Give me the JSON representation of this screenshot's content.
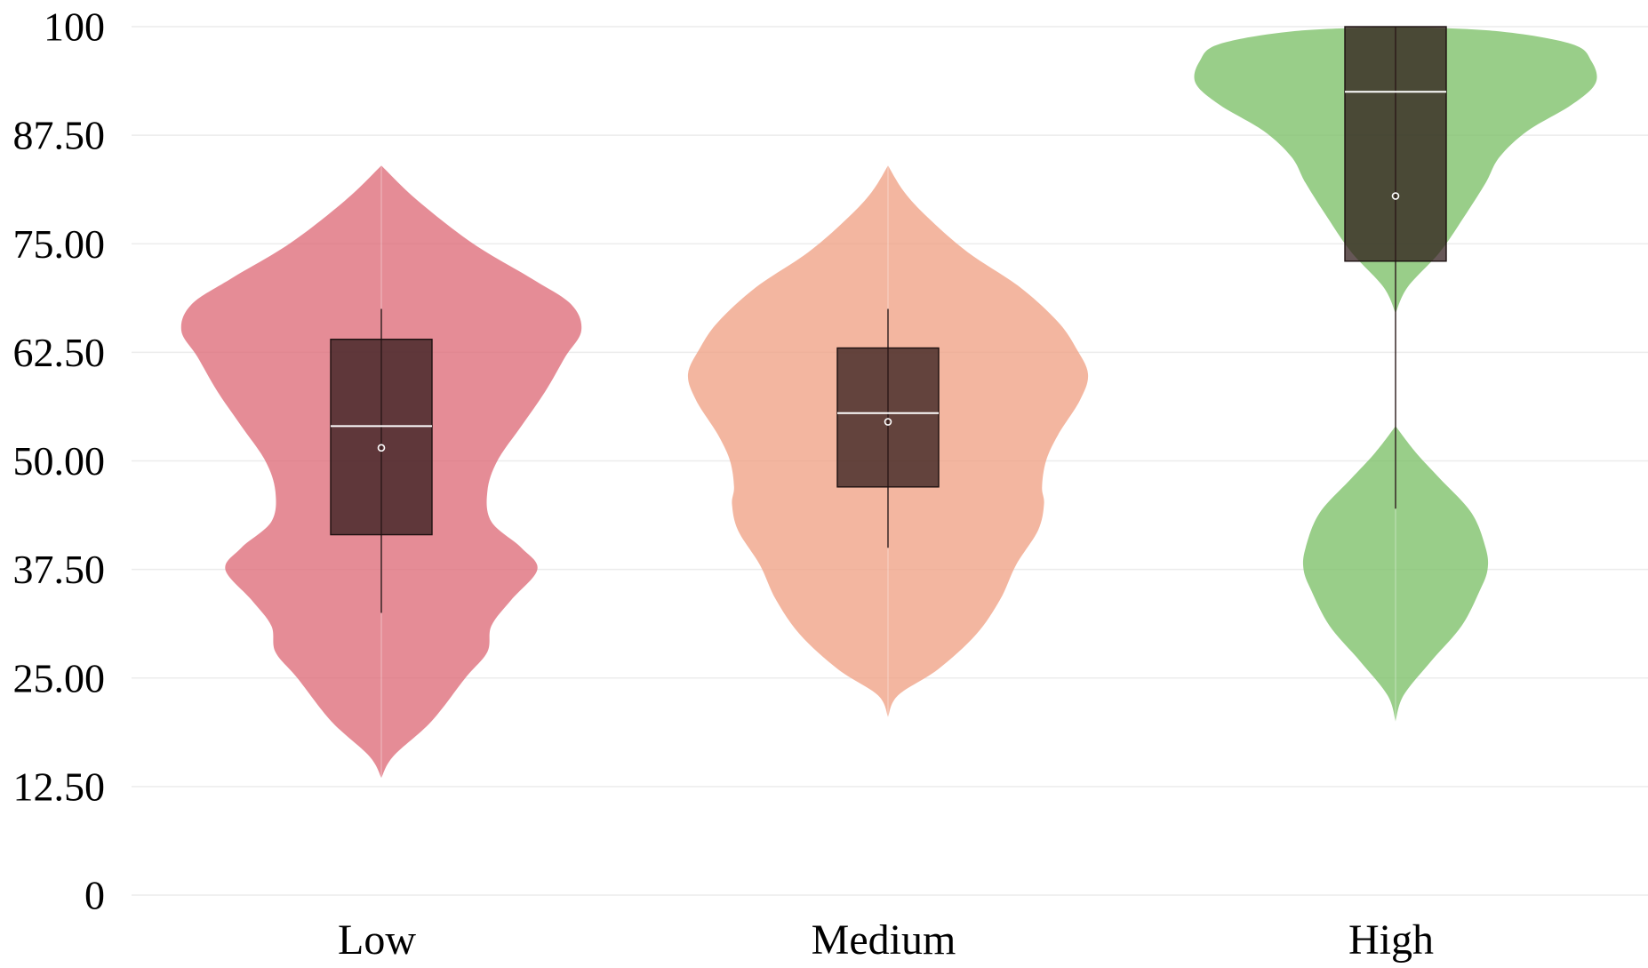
{
  "chart_data": {
    "type": "violin",
    "title": "",
    "xlabel": "",
    "ylabel": "",
    "ylim": [
      0,
      100
    ],
    "yticks": [
      0,
      12.5,
      25,
      37.5,
      50,
      62.5,
      75,
      87.5,
      100
    ],
    "ytick_labels": [
      "0",
      "12.50",
      "25.00",
      "37.50",
      "50.00",
      "62.50",
      "75.00",
      "87.50",
      "100"
    ],
    "grid": true,
    "legend": "none",
    "categories": [
      "Low",
      "Medium",
      "High"
    ],
    "series": [
      {
        "category": "Low",
        "color": "#de6b78",
        "box": {
          "whisker_low": 32.5,
          "q1": 41.5,
          "median": 54,
          "q3": 64,
          "whisker_high": 67.5,
          "mean": 51.5
        },
        "violin_range": [
          13.5,
          84
        ],
        "density": [
          [
            13.5,
            0.0
          ],
          [
            16,
            0.06
          ],
          [
            20,
            0.25
          ],
          [
            25,
            0.42
          ],
          [
            28,
            0.53
          ],
          [
            31,
            0.55
          ],
          [
            34,
            0.65
          ],
          [
            37.5,
            0.78
          ],
          [
            40,
            0.7
          ],
          [
            43,
            0.55
          ],
          [
            46.5,
            0.53
          ],
          [
            50,
            0.58
          ],
          [
            54,
            0.7
          ],
          [
            58,
            0.82
          ],
          [
            62,
            0.92
          ],
          [
            65,
            1.0
          ],
          [
            68,
            0.95
          ],
          [
            71,
            0.75
          ],
          [
            75,
            0.46
          ],
          [
            80,
            0.18
          ],
          [
            84,
            0.0
          ]
        ]
      },
      {
        "category": "Medium",
        "color": "#f0a185",
        "box": {
          "whisker_low": 40,
          "q1": 47,
          "median": 55.5,
          "q3": 63,
          "whisker_high": 67.5,
          "mean": 54.5
        },
        "violin_range": [
          20.5,
          84
        ],
        "density": [
          [
            20.5,
            0.0
          ],
          [
            23,
            0.05
          ],
          [
            26,
            0.25
          ],
          [
            30,
            0.44
          ],
          [
            34,
            0.56
          ],
          [
            38,
            0.64
          ],
          [
            42,
            0.75
          ],
          [
            45,
            0.78
          ],
          [
            47,
            0.77
          ],
          [
            50,
            0.79
          ],
          [
            53,
            0.85
          ],
          [
            57,
            0.96
          ],
          [
            60,
            1.0
          ],
          [
            63,
            0.94
          ],
          [
            66,
            0.85
          ],
          [
            70,
            0.66
          ],
          [
            74,
            0.4
          ],
          [
            78,
            0.2
          ],
          [
            81,
            0.08
          ],
          [
            84,
            0.0
          ]
        ]
      },
      {
        "category": "High",
        "color": "#7cc068",
        "box": {
          "whisker_low": 44.5,
          "q1": 73,
          "median": 92.5,
          "q3": 100,
          "whisker_high": 100,
          "mean": 80.5
        },
        "violin_range": [
          20,
          100
        ],
        "density": [
          [
            20,
            0.0
          ],
          [
            23,
            0.04
          ],
          [
            27,
            0.18
          ],
          [
            31,
            0.33
          ],
          [
            35,
            0.42
          ],
          [
            37.5,
            0.46
          ],
          [
            40,
            0.45
          ],
          [
            44,
            0.38
          ],
          [
            48,
            0.22
          ],
          [
            51,
            0.1
          ],
          [
            54,
            0.0
          ],
          [
            67,
            0.0
          ],
          [
            70,
            0.06
          ],
          [
            74,
            0.22
          ],
          [
            78,
            0.34
          ],
          [
            82,
            0.45
          ],
          [
            85,
            0.52
          ],
          [
            88,
            0.66
          ],
          [
            91,
            0.88
          ],
          [
            93.5,
            1.0
          ],
          [
            96,
            0.98
          ],
          [
            98,
            0.88
          ],
          [
            99.5,
            0.5
          ],
          [
            100,
            0.0
          ]
        ]
      }
    ]
  }
}
